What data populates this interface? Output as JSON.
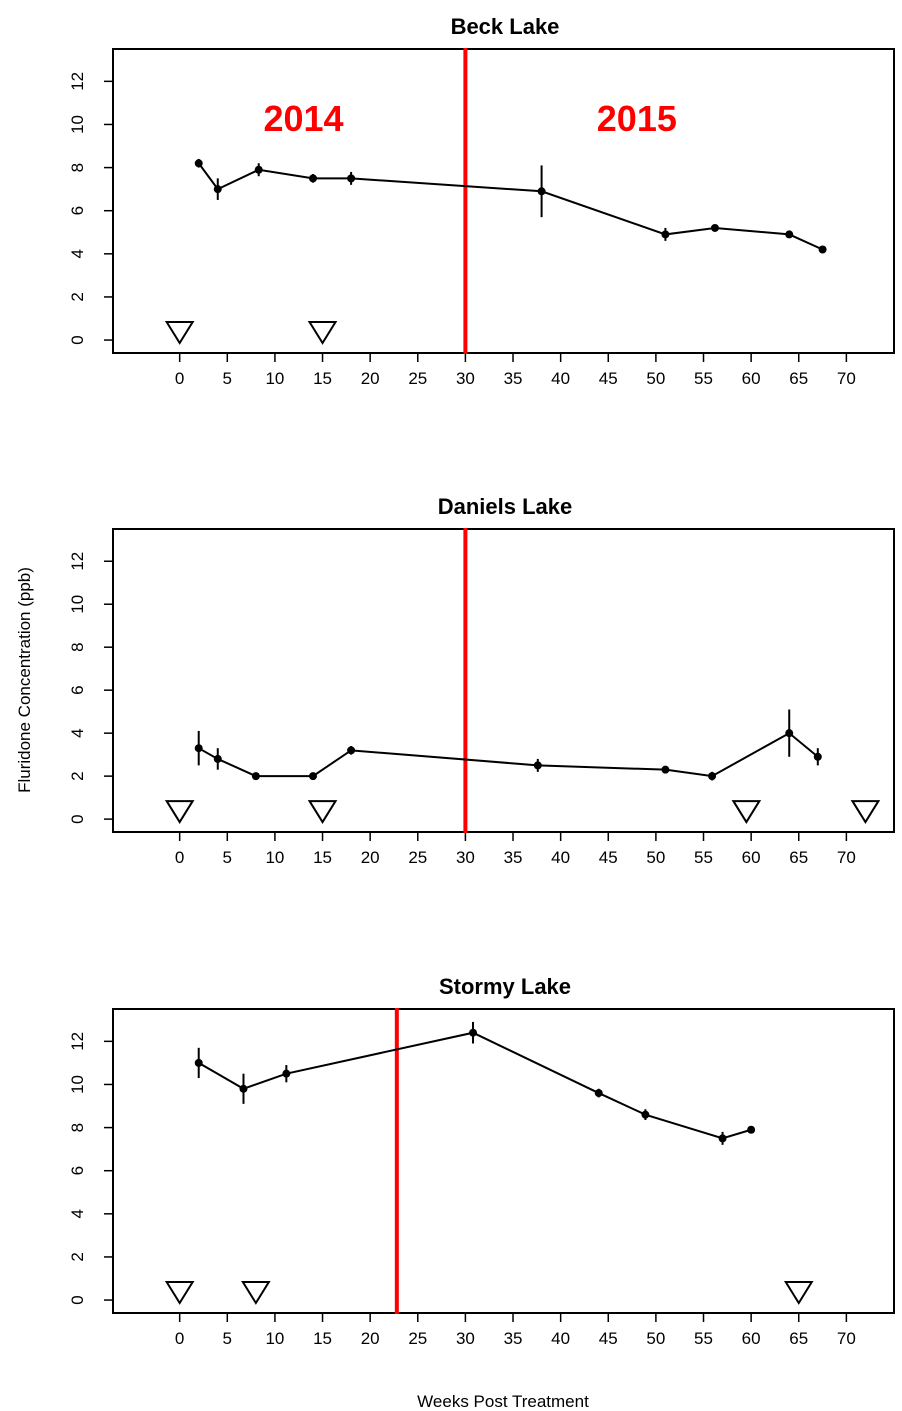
{
  "figure": {
    "ylabel": "Fluridone Concentration (ppb)",
    "xlabel": "Weeks Post Treatment"
  },
  "colors": {
    "divider": "#ff0000",
    "year_label": "#ff0000",
    "series": "#000000"
  },
  "chart_data": [
    {
      "type": "line",
      "title": "Beck Lake",
      "xlim": [
        -7,
        75
      ],
      "ylim": [
        -0.6,
        13.5
      ],
      "x_ticks": [
        0,
        5,
        10,
        15,
        20,
        25,
        30,
        35,
        40,
        45,
        50,
        55,
        60,
        65,
        70
      ],
      "y_ticks": [
        0,
        2,
        4,
        6,
        8,
        10,
        12
      ],
      "grid": false,
      "divider_x": 30,
      "year_labels": [
        {
          "text": "2014",
          "x": 13,
          "y": 9.7
        },
        {
          "text": "2015",
          "x": 48,
          "y": 9.7
        }
      ],
      "series": [
        {
          "x": [
            2,
            4,
            8.3,
            14,
            18,
            38,
            51,
            56.2,
            64,
            67.5
          ],
          "y": [
            8.2,
            7.0,
            7.9,
            7.5,
            7.5,
            6.9,
            4.9,
            5.2,
            4.9,
            4.2
          ],
          "err": [
            0.2,
            0.5,
            0.3,
            0.2,
            0.3,
            1.2,
            0.3,
            0.15,
            0.15,
            0.15
          ]
        }
      ],
      "treatment_markers_x": [
        0,
        15
      ]
    },
    {
      "type": "line",
      "title": "Daniels Lake",
      "xlim": [
        -7,
        75
      ],
      "ylim": [
        -0.6,
        13.5
      ],
      "x_ticks": [
        0,
        5,
        10,
        15,
        20,
        25,
        30,
        35,
        40,
        45,
        50,
        55,
        60,
        65,
        70
      ],
      "y_ticks": [
        0,
        2,
        4,
        6,
        8,
        10,
        12
      ],
      "grid": false,
      "divider_x": 30,
      "year_labels": [],
      "series": [
        {
          "x": [
            2,
            4,
            8,
            14,
            18,
            37.6,
            51,
            55.9,
            64,
            67
          ],
          "y": [
            3.3,
            2.8,
            2.0,
            2.0,
            3.2,
            2.5,
            2.3,
            2.0,
            4.0,
            2.9
          ],
          "err": [
            0.8,
            0.5,
            0.15,
            0.15,
            0.2,
            0.3,
            0.15,
            0.2,
            1.1,
            0.4
          ]
        }
      ],
      "treatment_markers_x": [
        0,
        15,
        59.5,
        72
      ]
    },
    {
      "type": "line",
      "title": "Stormy Lake",
      "xlim": [
        -7,
        75
      ],
      "ylim": [
        -0.6,
        13.5
      ],
      "x_ticks": [
        0,
        5,
        10,
        15,
        20,
        25,
        30,
        35,
        40,
        45,
        50,
        55,
        60,
        65,
        70
      ],
      "y_ticks": [
        0,
        2,
        4,
        6,
        8,
        10,
        12
      ],
      "grid": false,
      "divider_x": 22.8,
      "year_labels": [],
      "series": [
        {
          "x": [
            2,
            6.7,
            11.2,
            30.8,
            44,
            48.9,
            57,
            60
          ],
          "y": [
            11.0,
            9.8,
            10.5,
            12.4,
            9.6,
            8.6,
            7.5,
            7.9
          ],
          "err": [
            0.7,
            0.7,
            0.4,
            0.5,
            0.2,
            0.25,
            0.3,
            0.1
          ]
        }
      ],
      "treatment_markers_x": [
        0,
        8,
        65
      ]
    }
  ]
}
